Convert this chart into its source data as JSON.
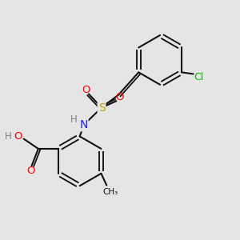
{
  "bg_color": "#e5e5e5",
  "bond_color": "#111111",
  "bond_width": 1.5,
  "colors": {
    "C": "#111111",
    "H": "#808080",
    "N": "#2020ff",
    "O": "#ff0000",
    "S": "#bbaa00",
    "Cl": "#00bb00"
  },
  "scale": 1.0
}
